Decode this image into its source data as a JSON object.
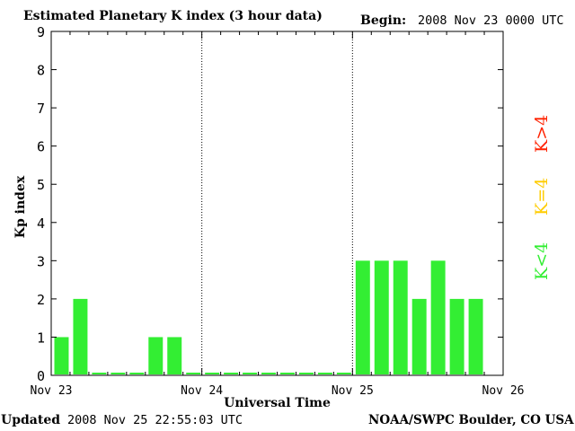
{
  "header": {
    "title": "Estimated Planetary K index (3 hour data)",
    "begin_label": "Begin:",
    "begin_value": "2008 Nov 23 0000 UTC"
  },
  "footer": {
    "updated_label": "Updated",
    "updated_value": "2008 Nov 25 22:55:03 UTC",
    "credit": "NOAA/SWPC Boulder, CO USA"
  },
  "legend": [
    {
      "label": "K<4",
      "color": "#33ee33"
    },
    {
      "label": "K=4",
      "color": "#ffcc00"
    },
    {
      "label": "K>4",
      "color": "#ff2200"
    }
  ],
  "colors": {
    "below4": "#33ee33",
    "equal4": "#ffcc00",
    "above4": "#ff2200"
  },
  "chart_data": {
    "type": "bar",
    "xlabel": "Universal Time",
    "ylabel": "Kp index",
    "ylim": [
      0,
      9
    ],
    "yticks": [
      0,
      1,
      2,
      3,
      4,
      5,
      6,
      7,
      8,
      9
    ],
    "x_tick_labels": [
      "Nov 23",
      "Nov 24",
      "Nov 25",
      "Nov 26"
    ],
    "day_dividers": [
      "Nov 24",
      "Nov 25"
    ],
    "interval_hours": 3,
    "values": [
      1,
      2,
      0,
      0,
      0,
      1,
      1,
      0,
      0,
      0,
      0,
      0,
      0,
      0,
      0,
      0,
      3,
      3,
      3,
      2,
      3,
      2,
      2
    ]
  }
}
